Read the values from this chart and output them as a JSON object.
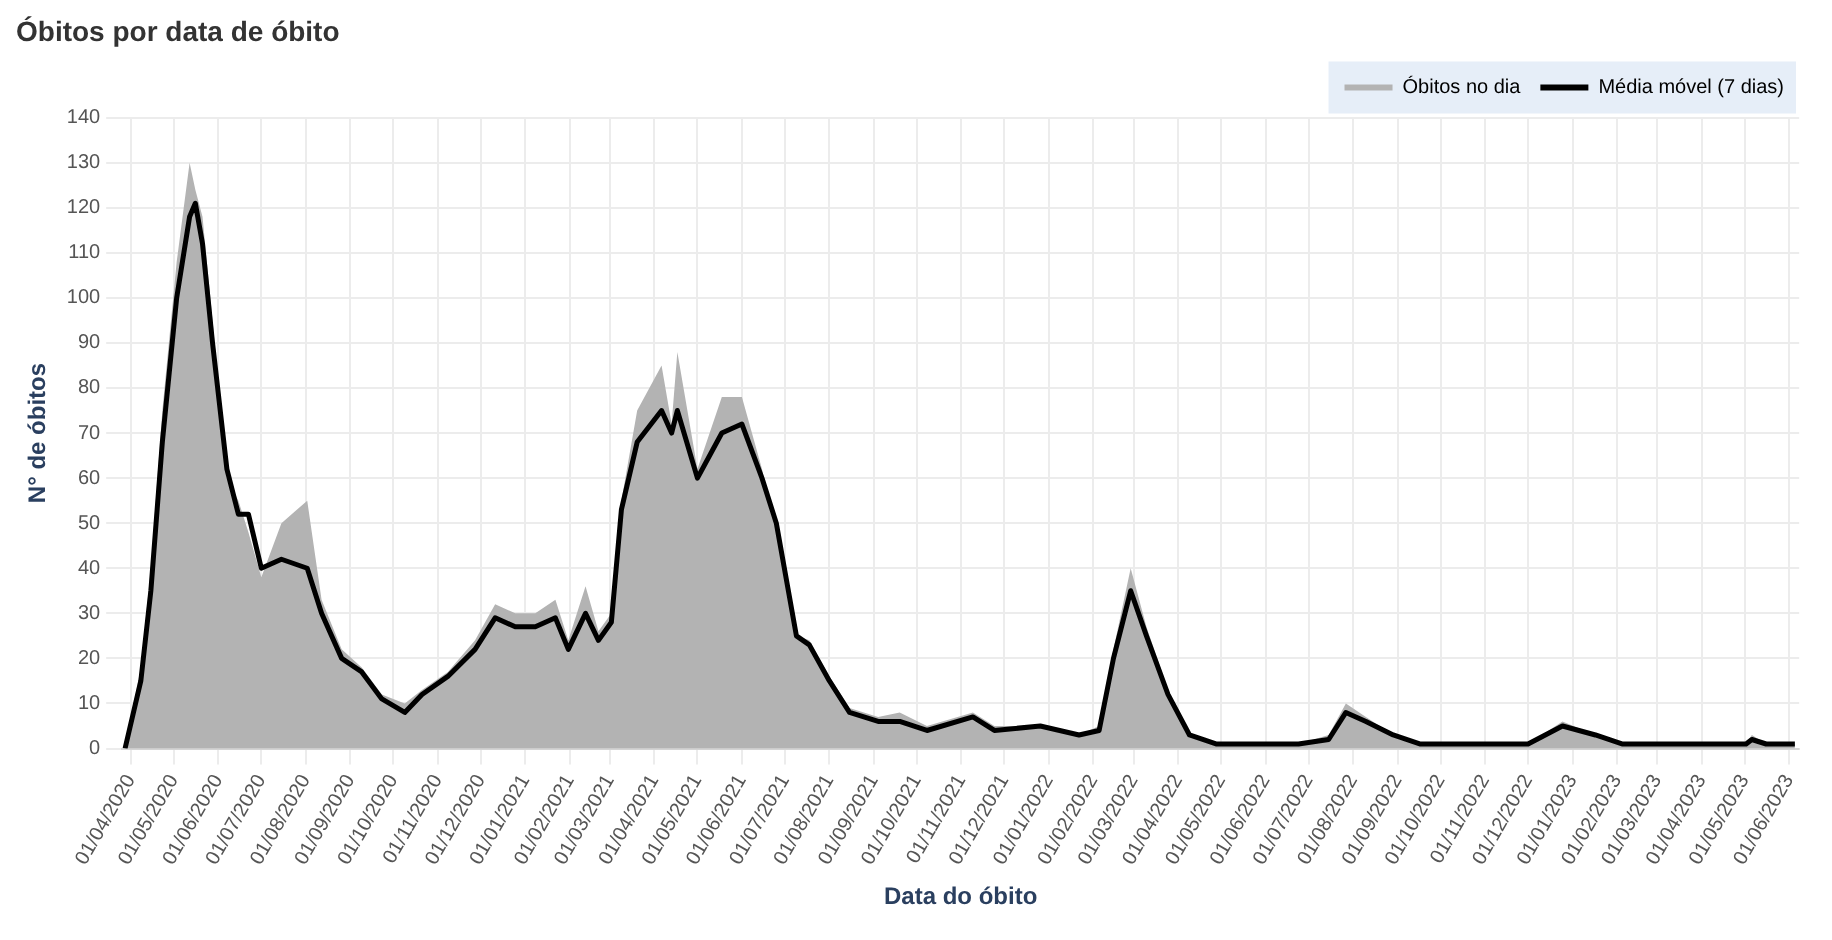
{
  "chart_data": {
    "type": "area",
    "title": "Óbitos por data de óbito",
    "xlabel": "Data do óbito",
    "ylabel": "N° de óbitos",
    "x": [
      "2020-03-28",
      "2020-04-08",
      "2020-04-15",
      "2020-04-23",
      "2020-05-03",
      "2020-05-12",
      "2020-05-16",
      "2020-05-21",
      "2020-05-28",
      "2020-06-07",
      "2020-06-15",
      "2020-06-22",
      "2020-07-01",
      "2020-07-15",
      "2020-08-02",
      "2020-08-12",
      "2020-08-26",
      "2020-09-09",
      "2020-09-23",
      "2020-10-09",
      "2020-10-21",
      "2020-11-08",
      "2020-11-27",
      "2020-12-11",
      "2020-12-25",
      "2021-01-08",
      "2021-01-22",
      "2021-01-31",
      "2021-02-12",
      "2021-02-21",
      "2021-03-02",
      "2021-03-09",
      "2021-03-20",
      "2021-04-06",
      "2021-04-13",
      "2021-04-17",
      "2021-05-01",
      "2021-05-18",
      "2021-06-01",
      "2021-06-15",
      "2021-06-25",
      "2021-07-09",
      "2021-07-18",
      "2021-08-01",
      "2021-08-15",
      "2021-09-04",
      "2021-09-19",
      "2021-10-08",
      "2021-11-09",
      "2021-11-24",
      "2021-12-26",
      "2022-01-22",
      "2022-02-05",
      "2022-02-15",
      "2022-02-27",
      "2022-03-10",
      "2022-03-25",
      "2022-04-09",
      "2022-04-28",
      "2022-05-21",
      "2022-06-24",
      "2022-07-15",
      "2022-07-27",
      "2022-08-10",
      "2022-08-29",
      "2022-09-17",
      "2022-11-02",
      "2022-12-01",
      "2022-12-25",
      "2023-01-17",
      "2023-02-05",
      "2023-05-02",
      "2023-05-06",
      "2023-05-16",
      "2023-06-05"
    ],
    "series": [
      {
        "name": "Óbitos no dia",
        "color": "#b3b3b3",
        "values": [
          0,
          18,
          40,
          75,
          108,
          130,
          124,
          118,
          95,
          60,
          55,
          48,
          38,
          50,
          55,
          33,
          22,
          18,
          12,
          10,
          13,
          17,
          24,
          32,
          30,
          30,
          33,
          24,
          36,
          26,
          30,
          55,
          75,
          85,
          72,
          88,
          62,
          78,
          78,
          62,
          48,
          25,
          24,
          16,
          9,
          7,
          8,
          5,
          8,
          5,
          5,
          3,
          5,
          22,
          40,
          27,
          13,
          3,
          1,
          1,
          1,
          3,
          10,
          7,
          3,
          1,
          1,
          1,
          6,
          3,
          1,
          1,
          3,
          1,
          1
        ]
      },
      {
        "name": "Média móvel (7 dias)",
        "type": "line",
        "color": "#000000",
        "values": [
          0,
          15,
          35,
          68,
          100,
          118,
          121,
          112,
          90,
          62,
          52,
          52,
          40,
          42,
          40,
          30,
          20,
          17,
          11,
          8,
          12,
          16,
          22,
          29,
          27,
          27,
          29,
          22,
          30,
          24,
          28,
          53,
          68,
          75,
          70,
          75,
          60,
          70,
          72,
          60,
          50,
          25,
          23,
          15,
          8,
          6,
          6,
          4,
          7,
          4,
          5,
          3,
          4,
          20,
          35,
          25,
          12,
          3,
          1,
          1,
          1,
          2,
          8,
          6,
          3,
          1,
          1,
          1,
          5,
          3,
          1,
          1,
          2,
          1,
          1
        ]
      }
    ],
    "xlim": [
      "2020-03-26",
      "2023-06-08"
    ],
    "xticks": [
      {
        "value": "2020-04-01",
        "label": "01/04/2020"
      },
      {
        "value": "2020-05-01",
        "label": "01/05/2020"
      },
      {
        "value": "2020-06-01",
        "label": "01/06/2020"
      },
      {
        "value": "2020-07-01",
        "label": "01/07/2020"
      },
      {
        "value": "2020-08-01",
        "label": "01/08/2020"
      },
      {
        "value": "2020-09-01",
        "label": "01/09/2020"
      },
      {
        "value": "2020-10-01",
        "label": "01/10/2020"
      },
      {
        "value": "2020-11-01",
        "label": "01/11/2020"
      },
      {
        "value": "2020-12-01",
        "label": "01/12/2020"
      },
      {
        "value": "2021-01-01",
        "label": "01/01/2021"
      },
      {
        "value": "2021-02-01",
        "label": "01/02/2021"
      },
      {
        "value": "2021-03-01",
        "label": "01/03/2021"
      },
      {
        "value": "2021-04-01",
        "label": "01/04/2021"
      },
      {
        "value": "2021-05-01",
        "label": "01/05/2021"
      },
      {
        "value": "2021-06-01",
        "label": "01/06/2021"
      },
      {
        "value": "2021-07-01",
        "label": "01/07/2021"
      },
      {
        "value": "2021-08-01",
        "label": "01/08/2021"
      },
      {
        "value": "2021-09-01",
        "label": "01/09/2021"
      },
      {
        "value": "2021-10-01",
        "label": "01/10/2021"
      },
      {
        "value": "2021-11-01",
        "label": "01/11/2021"
      },
      {
        "value": "2021-12-01",
        "label": "01/12/2021"
      },
      {
        "value": "2022-01-01",
        "label": "01/01/2022"
      },
      {
        "value": "2022-02-01",
        "label": "01/02/2022"
      },
      {
        "value": "2022-03-01",
        "label": "01/03/2022"
      },
      {
        "value": "2022-04-01",
        "label": "01/04/2022"
      },
      {
        "value": "2022-05-01",
        "label": "01/05/2022"
      },
      {
        "value": "2022-06-01",
        "label": "01/06/2022"
      },
      {
        "value": "2022-07-01",
        "label": "01/07/2022"
      },
      {
        "value": "2022-08-01",
        "label": "01/08/2022"
      },
      {
        "value": "2022-09-01",
        "label": "01/09/2022"
      },
      {
        "value": "2022-10-01",
        "label": "01/10/2022"
      },
      {
        "value": "2022-11-01",
        "label": "01/11/2022"
      },
      {
        "value": "2022-12-01",
        "label": "01/12/2022"
      },
      {
        "value": "2023-01-01",
        "label": "01/01/2023"
      },
      {
        "value": "2023-02-01",
        "label": "01/02/2023"
      },
      {
        "value": "2023-03-01",
        "label": "01/03/2023"
      },
      {
        "value": "2023-04-01",
        "label": "01/04/2023"
      },
      {
        "value": "2023-05-01",
        "label": "01/05/2023"
      },
      {
        "value": "2023-06-01",
        "label": "01/06/2023"
      }
    ],
    "ylim": [
      0,
      140
    ],
    "yticks": [
      0,
      10,
      20,
      30,
      40,
      50,
      60,
      70,
      80,
      90,
      100,
      110,
      120,
      130,
      140
    ],
    "grid": true,
    "legend": "top right"
  }
}
